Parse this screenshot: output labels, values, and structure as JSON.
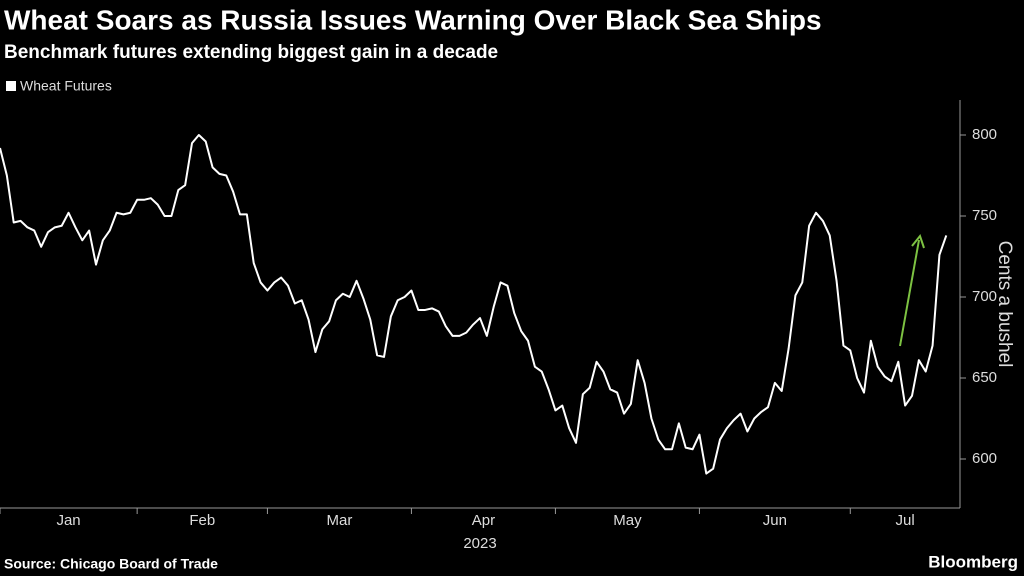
{
  "chart_data": {
    "type": "line",
    "title": "Wheat Soars as Russia Issues Warning Over Black Sea Ships",
    "subtitle": "Benchmark futures extending biggest gain in a decade",
    "y_label": "Cents a bushel",
    "x_label": "2023",
    "source": "Source: Chicago Board of Trade",
    "brand": "Bloomberg",
    "legend": "top-left",
    "series": [
      {
        "name": "Wheat Futures",
        "color": "#ffffff",
        "values": [
          792,
          775,
          746,
          747,
          743,
          741,
          731,
          740,
          743,
          744,
          752,
          743,
          735,
          741,
          720,
          735,
          741,
          752,
          751,
          752,
          760,
          760,
          761,
          757,
          750,
          750,
          766,
          769,
          795,
          800,
          796,
          780,
          776,
          775,
          765,
          751,
          751,
          721,
          709,
          704,
          709,
          712,
          707,
          696,
          698,
          686,
          666,
          680,
          685,
          698,
          702,
          700,
          710,
          699,
          686,
          664,
          663,
          688,
          698,
          700,
          704,
          692,
          692,
          693,
          691,
          682,
          676,
          676,
          678,
          683,
          687,
          676,
          694,
          709,
          707,
          690,
          679,
          673,
          657,
          654,
          643,
          630,
          633,
          619,
          610,
          640,
          644,
          660,
          654,
          643,
          641,
          628,
          634,
          661,
          647,
          625,
          612,
          606,
          606,
          622,
          607,
          606,
          615,
          591,
          594,
          612,
          619,
          624,
          628,
          617,
          625,
          629,
          632,
          647,
          642,
          668,
          701,
          709,
          744,
          752,
          747,
          738,
          710,
          670,
          667,
          650,
          641,
          673,
          657,
          651,
          648,
          660,
          633,
          639,
          661,
          654,
          670,
          726,
          738
        ]
      }
    ],
    "annotation_color": "#7dc242",
    "xlim": [
      0,
      140
    ],
    "xticks": [
      {
        "value": 0,
        "label": "Jan"
      },
      {
        "value": 20,
        "label": "Feb"
      },
      {
        "value": 39,
        "label": "Mar"
      },
      {
        "value": 60,
        "label": "Apr"
      },
      {
        "value": 81,
        "label": "May"
      },
      {
        "value": 102,
        "label": "Jun"
      },
      {
        "value": 124,
        "label": "Jul"
      }
    ],
    "ylim": [
      575,
      825
    ],
    "yticks": [
      600,
      650,
      700,
      750,
      800
    ]
  }
}
